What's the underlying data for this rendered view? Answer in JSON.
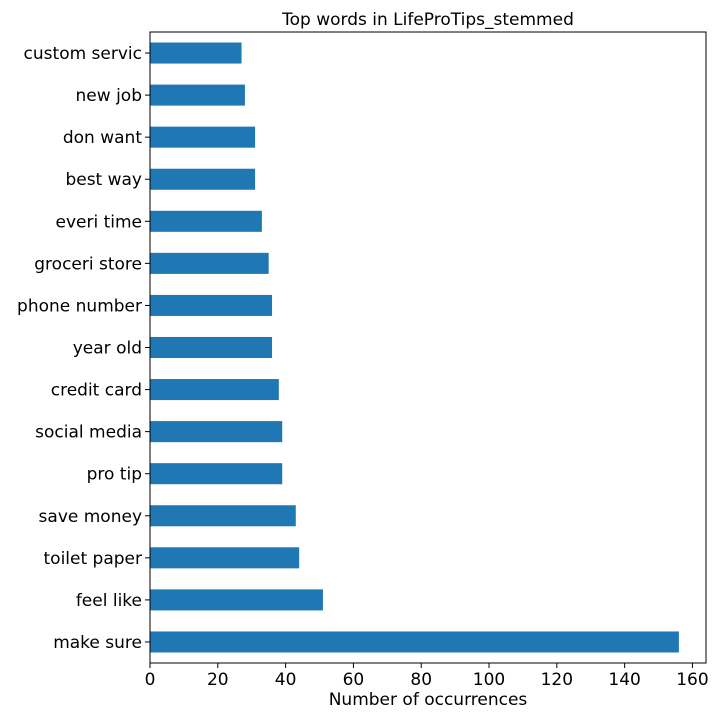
{
  "chart_data": {
    "type": "bar",
    "orientation": "horizontal",
    "title": "Top words in LifeProTips_stemmed",
    "xlabel": "Number of occurrences",
    "ylabel": "",
    "categories": [
      "custom servic",
      "new job",
      "don want",
      "best way",
      "everi time",
      "groceri store",
      "phone number",
      "year old",
      "credit card",
      "social media",
      "pro tip",
      "save money",
      "toilet paper",
      "feel like",
      "make sure"
    ],
    "values": [
      27,
      28,
      31,
      31,
      33,
      35,
      36,
      36,
      38,
      39,
      39,
      43,
      44,
      51,
      156
    ],
    "xlim": [
      0,
      164
    ],
    "xticks": [
      0,
      20,
      40,
      60,
      80,
      100,
      120,
      140,
      160
    ],
    "grid": false,
    "legend": "none",
    "bar_color": "#1f77b4"
  }
}
